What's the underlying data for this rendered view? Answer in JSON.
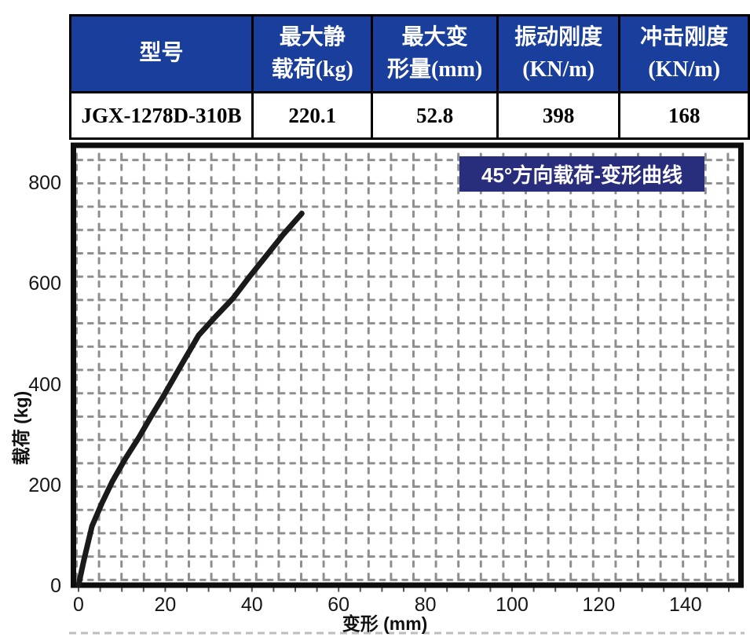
{
  "table": {
    "header_bg": "#1a3e9c",
    "header_text_color": "#ffffff",
    "headers": [
      {
        "line1": "型号",
        "line2": ""
      },
      {
        "line1": "最大静",
        "line2": "载荷(kg)"
      },
      {
        "line1": "最大变",
        "line2": "形量(mm)"
      },
      {
        "line1": "振动刚度",
        "line2": "(KN/m)"
      },
      {
        "line1": "冲击刚度",
        "line2": "(KN/m)"
      }
    ],
    "row": {
      "model": "JGX-1278D-310B",
      "max_static_load_kg": "220.1",
      "max_deformation_mm": "52.8",
      "vibration_stiffness": "398",
      "impact_stiffness": "168"
    }
  },
  "chart_data": {
    "type": "line",
    "title": "45°方向载荷-变形曲线",
    "xlabel": "变形 (mm)",
    "ylabel": "载荷 (kg)",
    "xlim": [
      0,
      153
    ],
    "ylim": [
      0,
      870
    ],
    "x_ticks": [
      0,
      20,
      40,
      60,
      80,
      100,
      120,
      140
    ],
    "y_ticks": [
      0,
      200,
      400,
      600,
      800
    ],
    "grid": "dashed",
    "legend": "none",
    "title_badge_bg": "#292e7c",
    "curve_color": "#1a1a1a",
    "grid_color": "#8e8e8e",
    "series": [
      {
        "name": "45°方向载荷-变形曲线",
        "x": [
          0,
          1.2,
          3.1,
          5.4,
          7.8,
          10.8,
          13.9,
          16.6,
          19.3,
          23.5,
          27.7,
          31.6,
          35.6,
          39.5,
          43.4,
          47.3,
          51.5
        ],
        "y": [
          0,
          48,
          117,
          163,
          206,
          251,
          293,
          333,
          371,
          434,
          496,
          533,
          569,
          613,
          655,
          697,
          738
        ]
      }
    ]
  }
}
